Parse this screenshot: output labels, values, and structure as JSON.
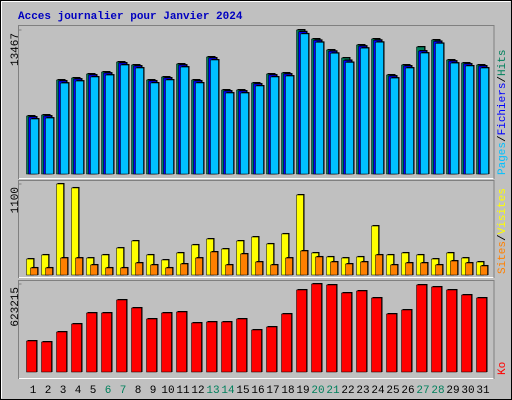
{
  "chart_data": [
    {
      "type": "bar",
      "title": "Acces journalier pour Janvier 2024",
      "title_color": "#0000c0",
      "ylim": [
        0,
        13467
      ],
      "yticks": [
        13467
      ],
      "legend_separator": "/",
      "series": [
        {
          "name": "Hits",
          "color": "#00805c",
          "values": [
            5424,
            5518,
            8791,
            8978,
            9352,
            9539,
            10474,
            10194,
            8791,
            9071,
            10287,
            8791,
            10942,
            7856,
            7856,
            8510,
            9352,
            9446,
            13467,
            12625,
            11597,
            10848,
            12064,
            12625,
            9259,
            10194,
            11877,
            12532,
            10661,
            10381,
            10194
          ]
        },
        {
          "name": "Fichiers",
          "color": "#0000ff",
          "values": [
            5330,
            5420,
            8700,
            8880,
            9260,
            9440,
            10380,
            10100,
            8700,
            8980,
            10190,
            8700,
            10850,
            7760,
            7760,
            8420,
            9260,
            9350,
            13300,
            12500,
            11480,
            10620,
            11960,
            12510,
            9160,
            10100,
            11500,
            12400,
            10560,
            10290,
            10100
          ]
        },
        {
          "name": "Pages",
          "color": "#00c0ff",
          "values": [
            5140,
            5230,
            8500,
            8690,
            9070,
            9250,
            10190,
            9910,
            8510,
            8790,
            10000,
            8510,
            10660,
            7570,
            7570,
            8230,
            9070,
            9160,
            13100,
            12310,
            11290,
            10430,
            11770,
            12320,
            8970,
            9910,
            11310,
            12210,
            10370,
            10100,
            9910
          ]
        }
      ]
    },
    {
      "type": "bar",
      "ylim": [
        0,
        1100
      ],
      "yticks": [
        1100
      ],
      "legend_separator": "/",
      "series": [
        {
          "name": "Visites",
          "color": "#ffff00",
          "values": [
            193,
            242,
            1100,
            1052,
            205,
            242,
            326,
            411,
            242,
            181,
            266,
            363,
            435,
            314,
            411,
            459,
            375,
            496,
            967,
            266,
            218,
            205,
            218,
            592,
            242,
            266,
            242,
            193,
            266,
            205,
            157
          ]
        },
        {
          "name": "Sites",
          "color": "#ff8000",
          "values": [
            85,
            85,
            205,
            205,
            121,
            85,
            85,
            145,
            121,
            85,
            133,
            205,
            278,
            121,
            254,
            157,
            121,
            205,
            290,
            218,
            157,
            133,
            157,
            242,
            121,
            145,
            145,
            121,
            169,
            145,
            109
          ]
        }
      ]
    },
    {
      "type": "bar",
      "ylim": [
        0,
        623215
      ],
      "yticks": [
        623215
      ],
      "legend_separator": "/",
      "series": [
        {
          "name": "Ko",
          "color": "#ff0000",
          "values": [
            219542,
            212460,
            283280,
            339936,
            417838,
            417838,
            509904,
            453248,
            375346,
            417838,
            424920,
            347018,
            354100,
            354100,
            375346,
            297444,
            318690,
            410756,
            580724,
            623215,
            616134,
            559478,
            573642,
            524068,
            410756,
            439084,
            616134,
            601970,
            580724,
            545314,
            524068
          ]
        }
      ],
      "categories": [
        "1",
        "2",
        "3",
        "4",
        "5",
        "6",
        "7",
        "8",
        "9",
        "10",
        "11",
        "12",
        "13",
        "14",
        "15",
        "16",
        "17",
        "18",
        "19",
        "20",
        "21",
        "22",
        "23",
        "24",
        "25",
        "26",
        "27",
        "28",
        "29",
        "30",
        "31"
      ],
      "category_colors": [
        "#000000",
        "#000000",
        "#000000",
        "#000000",
        "#000000",
        "#00805c",
        "#00805c",
        "#000000",
        "#000000",
        "#000000",
        "#000000",
        "#000000",
        "#00805c",
        "#00805c",
        "#000000",
        "#000000",
        "#000000",
        "#000000",
        "#000000",
        "#00805c",
        "#00805c",
        "#000000",
        "#000000",
        "#000000",
        "#000000",
        "#000000",
        "#00805c",
        "#00805c",
        "#000000",
        "#000000",
        "#000000"
      ]
    }
  ]
}
